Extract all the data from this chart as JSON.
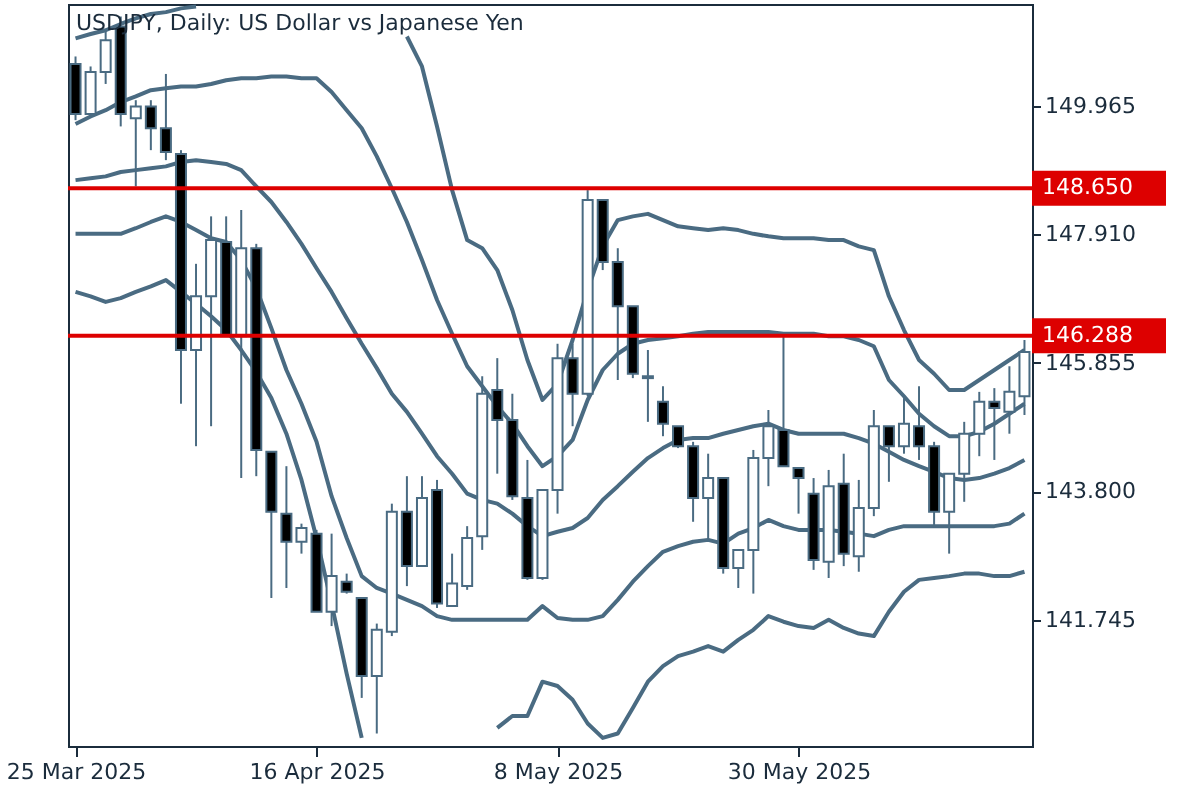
{
  "chart_data": {
    "type": "candlestick",
    "title": "USDJPY, Daily:  US Dollar vs Japanese Yen",
    "categories": [
      "25 Mar 2025",
      null,
      null,
      null,
      null,
      null,
      null,
      null,
      null,
      null,
      null,
      null,
      null,
      null,
      null,
      null,
      "16 Apr 2025",
      null,
      null,
      null,
      null,
      null,
      null,
      null,
      null,
      null,
      null,
      null,
      null,
      null,
      null,
      null,
      "8 May 2025",
      null,
      null,
      null,
      null,
      null,
      null,
      null,
      null,
      null,
      null,
      null,
      null,
      null,
      null,
      null,
      "30 May 2025",
      null,
      null,
      null,
      null,
      null,
      null,
      null,
      null,
      null,
      null,
      null,
      null,
      null,
      null,
      null
    ],
    "ylim": [
      139.72,
      151.6
    ],
    "yticks": [
      141.745,
      {
        "value": 143.8,
        "label": "143.800"
      },
      145.855,
      {
        "value": 147.91,
        "label": "147.910"
      },
      149.965
    ],
    "ref_lines": [
      {
        "axis": "y",
        "value": 148.65,
        "label": "148.650",
        "color": "#dd0000"
      },
      {
        "axis": "y",
        "value": 146.288,
        "label": "146.288",
        "color": "#dd0000"
      }
    ],
    "ohlc": [
      [
        150.64,
        150.76,
        149.74,
        149.84
      ],
      [
        149.84,
        150.6,
        149.8,
        150.51
      ],
      [
        150.51,
        151.18,
        150.32,
        151.02
      ],
      [
        151.24,
        151.4,
        149.64,
        149.84
      ],
      [
        149.77,
        150.06,
        148.68,
        149.96
      ],
      [
        149.96,
        150.06,
        149.26,
        149.61
      ],
      [
        149.61,
        150.48,
        149.1,
        149.23
      ],
      [
        149.2,
        149.26,
        145.2,
        146.06
      ],
      [
        146.06,
        147.44,
        144.52,
        146.92
      ],
      [
        146.92,
        148.2,
        144.84,
        147.82
      ],
      [
        147.79,
        148.2,
        146.28,
        146.28
      ],
      [
        146.28,
        148.3,
        144.01,
        147.69
      ],
      [
        147.69,
        147.76,
        144.04,
        144.46
      ],
      [
        144.43,
        144.43,
        142.09,
        143.47
      ],
      [
        143.44,
        144.2,
        142.25,
        142.99
      ],
      [
        142.99,
        143.28,
        142.8,
        143.21
      ],
      [
        143.12,
        143.18,
        141.87,
        141.87
      ],
      [
        141.87,
        143.12,
        141.64,
        142.44
      ],
      [
        142.35,
        142.48,
        142.16,
        142.19
      ],
      [
        142.09,
        142.09,
        140.49,
        140.84
      ],
      [
        140.84,
        141.68,
        139.92,
        141.58
      ],
      [
        141.55,
        143.6,
        141.48,
        143.47
      ],
      [
        143.47,
        144.04,
        142.28,
        142.6
      ],
      [
        142.6,
        144.04,
        142.6,
        143.69
      ],
      [
        143.82,
        143.98,
        141.93,
        142.0
      ],
      [
        141.96,
        142.8,
        141.96,
        142.32
      ],
      [
        142.28,
        143.24,
        142.22,
        143.05
      ],
      [
        143.08,
        145.64,
        142.86,
        145.36
      ],
      [
        145.42,
        145.93,
        144.08,
        144.94
      ],
      [
        144.94,
        145.36,
        143.66,
        143.72
      ],
      [
        143.69,
        144.3,
        142.38,
        142.41
      ],
      [
        142.41,
        143.82,
        142.38,
        143.82
      ],
      [
        143.82,
        146.16,
        143.44,
        145.93
      ],
      [
        145.93,
        146.16,
        144.84,
        145.36
      ],
      [
        145.36,
        148.62,
        145.32,
        148.46
      ],
      [
        148.46,
        148.46,
        147.34,
        147.47
      ],
      [
        147.47,
        147.69,
        145.58,
        146.76
      ],
      [
        146.76,
        146.76,
        145.61,
        145.68
      ],
      [
        145.64,
        146.06,
        144.91,
        145.61
      ],
      [
        145.23,
        145.48,
        144.68,
        144.88
      ],
      [
        144.84,
        144.84,
        144.49,
        144.52
      ],
      [
        144.52,
        144.59,
        143.31,
        143.69
      ],
      [
        143.69,
        144.4,
        143.02,
        144.01
      ],
      [
        144.01,
        144.01,
        142.48,
        142.57
      ],
      [
        142.57,
        142.86,
        142.25,
        142.86
      ],
      [
        142.86,
        144.46,
        142.16,
        144.33
      ],
      [
        144.33,
        145.1,
        143.88,
        144.84
      ],
      [
        144.78,
        146.28,
        144.2,
        144.2
      ],
      [
        144.17,
        144.17,
        143.44,
        144.01
      ],
      [
        143.76,
        144.01,
        142.54,
        142.7
      ],
      [
        142.67,
        144.14,
        142.41,
        143.88
      ],
      [
        143.92,
        144.4,
        142.6,
        142.8
      ],
      [
        142.76,
        143.98,
        142.51,
        143.53
      ],
      [
        143.53,
        145.1,
        143.4,
        144.84
      ],
      [
        144.84,
        144.84,
        143.95,
        144.52
      ],
      [
        144.52,
        145.29,
        144.4,
        144.88
      ],
      [
        144.84,
        145.48,
        144.3,
        144.52
      ],
      [
        144.52,
        144.59,
        143.21,
        143.47
      ],
      [
        143.47,
        144.08,
        142.8,
        144.08
      ],
      [
        144.08,
        144.91,
        143.63,
        144.72
      ],
      [
        144.72,
        145.39,
        144.36,
        145.23
      ],
      [
        145.23,
        145.45,
        144.3,
        145.13
      ],
      [
        145.07,
        145.8,
        144.72,
        145.39
      ],
      [
        145.32,
        146.22,
        145.02,
        146.03
      ]
    ],
    "series": [
      {
        "type": "line",
        "color": "#4a6b82",
        "values": [
          151.05,
          151.12,
          151.18,
          151.28,
          151.37,
          151.44,
          151.47,
          151.53,
          151.56,
          null,
          null,
          null,
          null,
          null,
          null,
          null,
          null,
          null,
          null,
          null,
          null,
          null,
          151.08,
          150.6,
          149.64,
          148.62,
          147.82,
          147.69,
          147.34,
          146.7,
          145.9,
          145.26,
          145.52,
          146.22,
          147.02,
          147.72,
          148.14,
          148.2,
          148.24,
          148.14,
          148.04,
          148.01,
          147.98,
          148.01,
          147.98,
          147.92,
          147.88,
          147.85,
          147.85,
          147.85,
          147.82,
          147.82,
          147.72,
          147.66,
          146.92,
          146.38,
          145.9,
          145.68,
          145.42,
          145.42,
          145.58,
          145.74,
          145.9,
          146.06
        ]
      },
      {
        "type": "line",
        "color": "#4a6b82",
        "values": [
          149.68,
          149.8,
          149.9,
          150.03,
          150.12,
          150.22,
          150.25,
          150.28,
          150.28,
          150.32,
          150.38,
          150.41,
          150.41,
          150.44,
          150.44,
          150.41,
          150.41,
          150.19,
          149.9,
          149.61,
          149.16,
          148.65,
          148.11,
          147.5,
          146.86,
          146.32,
          145.8,
          145.48,
          145.16,
          144.88,
          144.52,
          144.2,
          144.36,
          144.62,
          145.26,
          145.74,
          146.0,
          146.16,
          146.22,
          146.25,
          146.28,
          146.32,
          146.35,
          146.35,
          146.35,
          146.35,
          146.35,
          146.32,
          146.32,
          146.32,
          146.28,
          146.28,
          146.22,
          146.12,
          145.58,
          145.32,
          145.04,
          144.84,
          144.68,
          144.68,
          144.75,
          144.88,
          145.04,
          145.2
        ]
      },
      {
        "type": "line",
        "color": "#4a6b82",
        "values": [
          148.78,
          148.81,
          148.84,
          148.91,
          148.94,
          148.97,
          149.0,
          149.07,
          149.1,
          149.07,
          149.04,
          148.94,
          148.68,
          148.43,
          148.11,
          147.76,
          147.37,
          146.99,
          146.57,
          146.16,
          145.77,
          145.36,
          145.07,
          144.72,
          144.36,
          144.08,
          143.76,
          143.66,
          143.6,
          143.44,
          143.24,
          143.08,
          143.15,
          143.21,
          143.37,
          143.66,
          143.88,
          144.11,
          144.33,
          144.49,
          144.62,
          144.65,
          144.65,
          144.72,
          144.78,
          144.84,
          144.88,
          144.78,
          144.72,
          144.72,
          144.72,
          144.72,
          144.65,
          144.56,
          144.43,
          144.3,
          144.2,
          144.11,
          144.01,
          143.98,
          144.01,
          144.08,
          144.17,
          144.3
        ]
      },
      {
        "type": "line",
        "color": "#4a6b82",
        "values": [
          147.92,
          147.92,
          147.92,
          147.92,
          148.01,
          148.11,
          148.2,
          148.11,
          147.98,
          147.85,
          147.79,
          147.5,
          147.05,
          146.41,
          145.74,
          145.2,
          144.59,
          143.72,
          143.05,
          142.44,
          142.25,
          142.16,
          142.06,
          141.96,
          141.8,
          141.74,
          141.74,
          141.74,
          141.74,
          141.74,
          141.74,
          141.96,
          141.77,
          141.74,
          141.74,
          141.8,
          142.06,
          142.35,
          142.6,
          142.83,
          142.92,
          142.99,
          143.02,
          142.96,
          143.12,
          143.21,
          143.34,
          143.24,
          143.18,
          143.18,
          143.18,
          143.15,
          143.12,
          143.08,
          143.18,
          143.24,
          143.24,
          143.24,
          143.24,
          143.24,
          143.24,
          143.24,
          143.28,
          143.44
        ]
      },
      {
        "type": "line",
        "color": "#4a6b82",
        "values": [
          146.99,
          146.92,
          146.83,
          146.89,
          146.99,
          147.08,
          147.18,
          146.99,
          146.8,
          146.6,
          146.38,
          146.06,
          145.71,
          145.29,
          144.72,
          143.98,
          143.05,
          142.0,
          140.88,
          139.85,
          null,
          null,
          null,
          null,
          null,
          null,
          null,
          null,
          140.01,
          140.2,
          140.2,
          140.75,
          140.68,
          140.46,
          140.08,
          139.85,
          139.92,
          140.33,
          140.75,
          141.0,
          141.16,
          141.23,
          141.32,
          141.23,
          141.42,
          141.58,
          141.8,
          141.71,
          141.64,
          141.61,
          141.74,
          141.61,
          141.52,
          141.48,
          141.87,
          142.19,
          142.38,
          142.41,
          142.44,
          142.48,
          142.48,
          142.44,
          142.44,
          142.51
        ]
      }
    ]
  }
}
